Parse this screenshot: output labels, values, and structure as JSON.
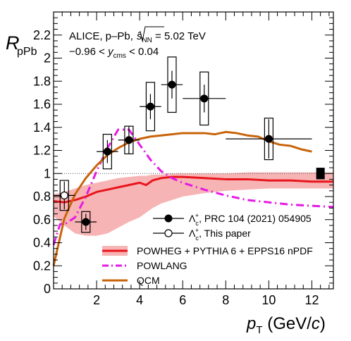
{
  "chart_data": {
    "type": "scatter",
    "experiment": "ALICE, p–Pb,",
    "energy_prefix": "s",
    "energy_sub": "NN",
    "energy_value": " = 5.02 TeV",
    "rapidity_lo": "−0.96 < ",
    "rapidity_var": "y",
    "rapidity_sub": "cms",
    "rapidity_hi": " < 0.04",
    "ylabel_main": "R",
    "ylabel_sub": "pPb",
    "xlabel_main": "p",
    "xlabel_sub": "T",
    "xlabel_unit_pre": " (GeV/",
    "xlabel_unit_var": "c",
    "xlabel_unit_post": ")",
    "xlim": [
      0,
      13
    ],
    "ylim": [
      0,
      2.4
    ],
    "xticks": [
      2,
      4,
      6,
      8,
      10,
      12
    ],
    "yticks": [
      0,
      0.2,
      0.4,
      0.6,
      0.8,
      1,
      1.2,
      1.4,
      1.6,
      1.8,
      2,
      2.2
    ],
    "ytick_labels": [
      "0",
      "0.2",
      "0.4",
      "0.6",
      "0.8",
      "1",
      "1.2",
      "1.4",
      "1.6",
      "1.8",
      "2",
      "2.2"
    ],
    "xtick_labels": [
      "2",
      "4",
      "6",
      "8",
      "10",
      "12"
    ],
    "reference_line": 1.0,
    "global_uncertainty": {
      "x": 12.4,
      "y": 1.0,
      "half_height": 0.05
    },
    "series": [
      {
        "name": "Λₗ⁺, PRC 104 (2021) 054905",
        "label_sym": "Λ",
        "label_sub": "c",
        "label_sup": "+",
        "label_text": ", PRC 104 (2021) 054905",
        "marker": "filled",
        "color": "#000000",
        "points": [
          {
            "x": 1.5,
            "xerr": 0.5,
            "y": 0.58,
            "stat": 0.07,
            "sys": 0.09
          },
          {
            "x": 2.5,
            "xerr": 0.5,
            "y": 1.19,
            "stat": 0.1,
            "sys": 0.15
          },
          {
            "x": 3.5,
            "xerr": 0.5,
            "y": 1.29,
            "stat": 0.12,
            "sys": 0.12
          },
          {
            "x": 4.5,
            "xerr": 0.5,
            "y": 1.58,
            "stat": 0.11,
            "sys": 0.21
          },
          {
            "x": 5.5,
            "xerr": 0.5,
            "y": 1.77,
            "stat": 0.12,
            "sys": 0.24
          },
          {
            "x": 7.0,
            "xerr": 1.0,
            "y": 1.65,
            "stat": 0.12,
            "sys": 0.23
          },
          {
            "x": 10.0,
            "xerr": 2.0,
            "y": 1.3,
            "stat": 0.17,
            "sys": 0.18
          }
        ]
      },
      {
        "name": "Λₗ⁺, This paper",
        "label_sym": "Λ",
        "label_sub": "c",
        "label_sup": "+",
        "label_text": ", This paper",
        "marker": "open",
        "color": "#000000",
        "points": [
          {
            "x": 0.5,
            "xerr": 0.5,
            "y": 0.81,
            "stat": 0.12,
            "sys": 0.13
          }
        ]
      }
    ],
    "models": [
      {
        "name": "POWHEG + PYTHIA 6 + EPPS16 nPDF",
        "color": "#e8151d",
        "band_color": "#f7b4b4",
        "style": "solid",
        "x": [
          0.0,
          0.5,
          1.0,
          1.5,
          2.0,
          2.5,
          3.0,
          3.5,
          4.0,
          4.3,
          4.6,
          5.0,
          5.5,
          6.0,
          7.0,
          8.0,
          9.0,
          10.0,
          11.0,
          12.0,
          13.0
        ],
        "y": [
          0.76,
          0.75,
          0.77,
          0.8,
          0.84,
          0.86,
          0.88,
          0.9,
          0.92,
          0.9,
          0.94,
          0.96,
          0.97,
          0.97,
          0.96,
          0.95,
          0.95,
          0.94,
          0.94,
          0.93,
          0.93
        ],
        "band_low": [
          0.63,
          0.55,
          0.48,
          0.46,
          0.46,
          0.48,
          0.53,
          0.58,
          0.62,
          0.66,
          0.7,
          0.74,
          0.77,
          0.8,
          0.83,
          0.85,
          0.86,
          0.87,
          0.87,
          0.87,
          0.87
        ],
        "band_high": [
          0.82,
          0.84,
          0.87,
          0.9,
          0.92,
          0.94,
          0.96,
          0.97,
          0.98,
          0.98,
          0.99,
          0.99,
          1.0,
          1.0,
          1.0,
          1.0,
          1.01,
          1.01,
          1.01,
          1.01,
          1.01
        ]
      },
      {
        "name": "POWLANG",
        "color": "#e619e6",
        "style": "dashdot",
        "x": [
          0.0,
          0.3,
          0.6,
          1.0,
          1.5,
          2.0,
          2.5,
          3.0,
          3.5,
          4.0,
          4.5,
          5.0,
          5.5,
          6.0,
          7.0,
          8.0,
          9.0,
          10.0,
          11.0,
          12.0,
          13.0
        ],
        "y": [
          0.38,
          0.56,
          0.57,
          0.62,
          0.8,
          1.02,
          1.22,
          1.38,
          1.38,
          1.25,
          1.12,
          1.02,
          0.96,
          0.92,
          0.86,
          0.81,
          0.77,
          0.75,
          0.73,
          0.72,
          0.71
        ]
      },
      {
        "name": "QCM",
        "color": "#c8640a",
        "style": "solid",
        "x": [
          0.0,
          0.5,
          1.0,
          1.5,
          2.0,
          2.5,
          3.0,
          3.5,
          4.0,
          4.5,
          5.0,
          5.5,
          6.0,
          6.5,
          7.0,
          7.5,
          8.0,
          8.5,
          9.0,
          9.5,
          10.0,
          10.5,
          11.0,
          11.5,
          12.0
        ],
        "y": [
          0.2,
          0.61,
          0.82,
          0.96,
          1.07,
          1.16,
          1.22,
          1.27,
          1.3,
          1.32,
          1.33,
          1.34,
          1.35,
          1.35,
          1.35,
          1.34,
          1.36,
          1.35,
          1.33,
          1.32,
          1.28,
          1.25,
          1.24,
          1.21,
          1.19
        ]
      }
    ]
  }
}
